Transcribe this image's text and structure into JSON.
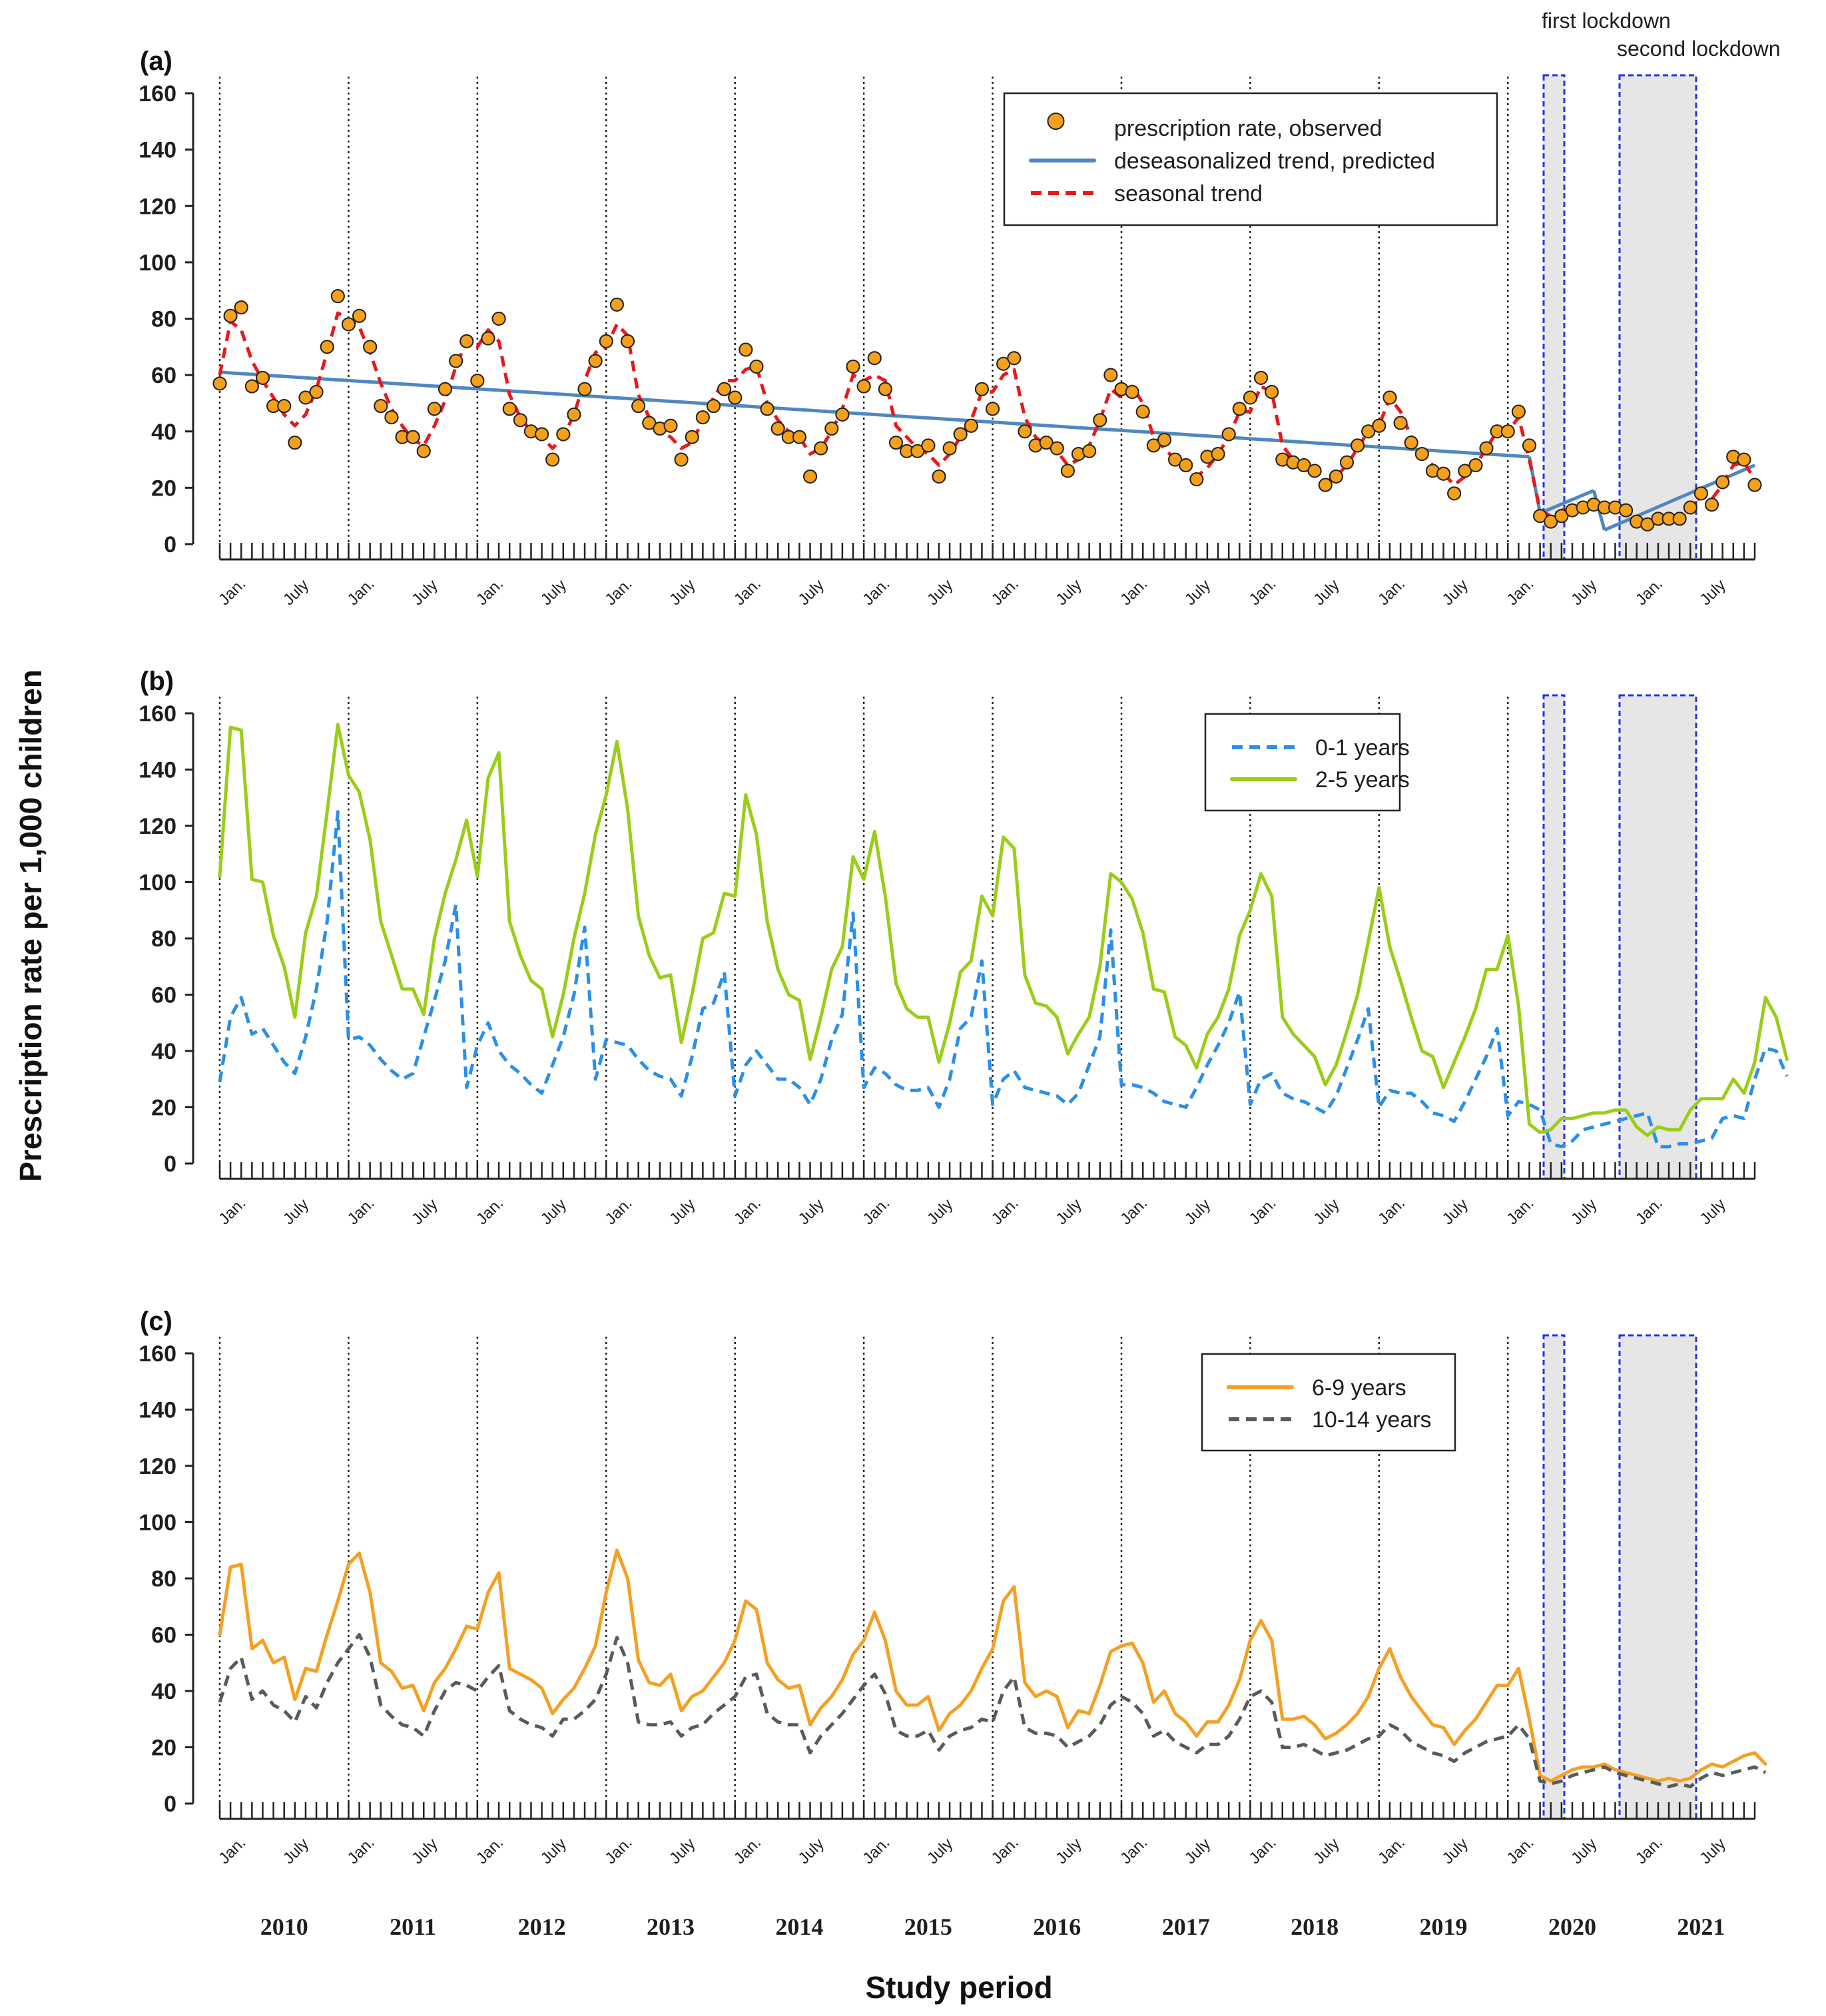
{
  "chart_data": {
    "type": "line",
    "ylabel": "Prescription rate per 1,000 children",
    "xlabel": "Study period",
    "ylim": [
      0,
      160
    ],
    "yticks": [
      "0",
      "20",
      "40",
      "60",
      "80",
      "100",
      "120",
      "140",
      "160"
    ],
    "years": [
      "2010",
      "2011",
      "2012",
      "2013",
      "2014",
      "2015",
      "2016",
      "2017",
      "2018",
      "2019",
      "2020",
      "2021"
    ],
    "month_labels": {
      "jan": "Jan.",
      "jul": "July"
    },
    "lockdowns": [
      {
        "label": "first lockdown",
        "from_month_index": 123,
        "to_month_index": 125
      },
      {
        "label": "second lockdown",
        "from_month_index": 129,
        "to_month_index": 135
      }
    ],
    "panels": [
      {
        "label": "(a)",
        "legend": [
          {
            "name": "prescription rate, observed",
            "style": "markers",
            "color": "#F5A01A"
          },
          {
            "name": "deseasonalized trend, predicted",
            "style": "solid",
            "color": "#4F87C0"
          },
          {
            "name": "seasonal trend",
            "style": "dashed",
            "color": "#E8181B"
          }
        ],
        "series": [
          {
            "name": "prescription rate, observed",
            "values": [
              57,
              81,
              84,
              56,
              59,
              49,
              49,
              36,
              52,
              54,
              70,
              88,
              78,
              81,
              70,
              49,
              45,
              38,
              38,
              33,
              48,
              55,
              65,
              72,
              58,
              73,
              80,
              48,
              44,
              40,
              39,
              30,
              39,
              46,
              55,
              65,
              72,
              85,
              72,
              49,
              43,
              41,
              42,
              30,
              38,
              45,
              49,
              55,
              52,
              69,
              63,
              48,
              41,
              38,
              38,
              24,
              34,
              41,
              46,
              63,
              56,
              66,
              55,
              36,
              33,
              33,
              35,
              24,
              34,
              39,
              42,
              55,
              48,
              64,
              66,
              40,
              35,
              36,
              34,
              26,
              32,
              33,
              44,
              60,
              55,
              54,
              47,
              35,
              37,
              30,
              28,
              23,
              31,
              32,
              39,
              48,
              52,
              59,
              54,
              30,
              29,
              28,
              26,
              21,
              24,
              29,
              35,
              40,
              42,
              52,
              43,
              36,
              32,
              26,
              25,
              18,
              26,
              28,
              34,
              40,
              40,
              47,
              35,
              10,
              8,
              10,
              12,
              13,
              14,
              13,
              13,
              12,
              8,
              7,
              9,
              9,
              9,
              13,
              18,
              14,
              22,
              31,
              30,
              21
            ]
          },
          {
            "name": "deseasonalized trend, predicted",
            "segments": [
              {
                "from": [
                  0,
                  61
                ],
                "to": [
                  122,
                  31
                ]
              },
              {
                "from": [
                  122,
                  31
                ],
                "to": [
                  123,
                  11
                ]
              },
              {
                "from": [
                  123,
                  11
                ],
                "to": [
                  128,
                  19
                ]
              },
              {
                "from": [
                  128,
                  19
                ],
                "to": [
                  129,
                  5
                ]
              },
              {
                "from": [
                  129,
                  5
                ],
                "to": [
                  143,
                  28
                ]
              }
            ]
          },
          {
            "name": "seasonal trend",
            "values": [
              60,
              79,
              76,
              65,
              58,
              52,
              46,
              42,
              46,
              55,
              68,
              82,
              80,
              77,
              68,
              57,
              48,
              42,
              37,
              35,
              42,
              51,
              63,
              72,
              70,
              76,
              72,
              53,
              45,
              40,
              38,
              34,
              38,
              46,
              58,
              68,
              70,
              78,
              74,
              53,
              45,
              40,
              38,
              34,
              36,
              44,
              52,
              58,
              58,
              62,
              63,
              50,
              44,
              40,
              38,
              32,
              34,
              40,
              48,
              60,
              58,
              60,
              58,
              42,
              38,
              34,
              32,
              28,
              32,
              38,
              44,
              54,
              54,
              60,
              62,
              45,
              38,
              35,
              33,
              28,
              30,
              35,
              44,
              55,
              52,
              56,
              50,
              38,
              34,
              30,
              28,
              24,
              27,
              32,
              38,
              47,
              47,
              56,
              54,
              35,
              30,
              28,
              26,
              22,
              24,
              28,
              34,
              40,
              42,
              52,
              47,
              38,
              32,
              28,
              25,
              21,
              24,
              28,
              34,
              40,
              40,
              45,
              30,
              12,
              10,
              12,
              13,
              13,
              14,
              13,
              13,
              12,
              9,
              8,
              9,
              9,
              9,
              13,
              17,
              16,
              21,
              28,
              29,
              23
            ]
          }
        ]
      },
      {
        "label": "(b)",
        "legend": [
          {
            "name": "0-1 years",
            "style": "dashed",
            "color": "#2A8FE8"
          },
          {
            "name": "2-5 years",
            "style": "solid",
            "color": "#9ACD19"
          }
        ],
        "series": [
          {
            "name": "0-1 years",
            "values": [
              29,
              52,
              59,
              46,
              48,
              42,
              36,
              32,
              45,
              62,
              86,
              125,
              44,
              45,
              42,
              37,
              33,
              30,
              32,
              45,
              58,
              72,
              92,
              27,
              42,
              50,
              40,
              35,
              32,
              28,
              25,
              35,
              45,
              60,
              84,
              30,
              44,
              43,
              42,
              37,
              33,
              31,
              30,
              24,
              38,
              55,
              57,
              68,
              24,
              35,
              40,
              35,
              30,
              30,
              27,
              21,
              30,
              44,
              53,
              89,
              27,
              34,
              32,
              28,
              26,
              26,
              27,
              20,
              30,
              48,
              52,
              72,
              21,
              30,
              33,
              27,
              26,
              25,
              24,
              21,
              25,
              35,
              45,
              83,
              28,
              28,
              27,
              25,
              22,
              21,
              20,
              27,
              35,
              42,
              50,
              61,
              21,
              30,
              32,
              25,
              23,
              22,
              20,
              18,
              24,
              34,
              44,
              55,
              20,
              26,
              25,
              25,
              22,
              18,
              17,
              15,
              22,
              30,
              38,
              48,
              17,
              22,
              21,
              19,
              7,
              6,
              8,
              12,
              13,
              14,
              15,
              16,
              17,
              18,
              6,
              6,
              7,
              7,
              8,
              9,
              16,
              17,
              16,
              30,
              41,
              40,
              31
            ]
          },
          {
            "name": "2-5 years",
            "values": [
              102,
              155,
              154,
              101,
              100,
              81,
              70,
              52,
              82,
              95,
              125,
              156,
              138,
              132,
              115,
              86,
              74,
              62,
              62,
              53,
              80,
              96,
              108,
              122,
              102,
              137,
              146,
              86,
              74,
              65,
              62,
              45,
              60,
              80,
              96,
              117,
              131,
              150,
              126,
              88,
              74,
              66,
              67,
              43,
              60,
              80,
              82,
              96,
              95,
              131,
              117,
              86,
              69,
              60,
              58,
              37,
              52,
              69,
              77,
              109,
              101,
              118,
              95,
              64,
              55,
              52,
              52,
              36,
              50,
              68,
              72,
              95,
              88,
              116,
              112,
              67,
              57,
              56,
              52,
              39,
              46,
              52,
              70,
              103,
              100,
              94,
              82,
              62,
              61,
              45,
              42,
              34,
              46,
              52,
              62,
              81,
              90,
              103,
              95,
              52,
              46,
              42,
              38,
              28,
              35,
              47,
              60,
              79,
              98,
              77,
              65,
              52,
              40,
              38,
              27,
              36,
              45,
              55,
              69,
              69,
              81,
              56,
              14,
              11,
              12,
              16,
              16,
              17,
              18,
              18,
              19,
              19,
              13,
              10,
              13,
              12,
              12,
              19,
              23,
              23,
              23,
              30,
              25,
              36,
              59,
              52,
              37
            ]
          }
        ]
      },
      {
        "label": "(c)",
        "legend": [
          {
            "name": "6-9 years",
            "style": "solid",
            "color": "#F4A024"
          },
          {
            "name": "10-14 years",
            "style": "dashed",
            "color": "#5A5A5A"
          }
        ],
        "series": [
          {
            "name": "6-9 years",
            "values": [
              60,
              84,
              85,
              55,
              58,
              50,
              52,
              37,
              48,
              47,
              60,
              72,
              85,
              89,
              75,
              50,
              47,
              41,
              42,
              33,
              43,
              48,
              55,
              63,
              62,
              75,
              82,
              48,
              46,
              44,
              41,
              32,
              37,
              41,
              48,
              56,
              75,
              90,
              80,
              51,
              43,
              42,
              46,
              33,
              38,
              40,
              45,
              50,
              58,
              72,
              69,
              50,
              44,
              41,
              42,
              28,
              34,
              38,
              44,
              53,
              58,
              68,
              58,
              40,
              35,
              35,
              38,
              26,
              32,
              35,
              40,
              48,
              55,
              72,
              77,
              43,
              38,
              40,
              38,
              27,
              33,
              32,
              42,
              54,
              56,
              57,
              50,
              36,
              40,
              32,
              29,
              24,
              29,
              29,
              35,
              44,
              58,
              65,
              58,
              30,
              30,
              31,
              28,
              23,
              25,
              28,
              32,
              38,
              48,
              55,
              45,
              38,
              33,
              28,
              27,
              21,
              26,
              30,
              36,
              42,
              42,
              48,
              30,
              10,
              8,
              10,
              12,
              13,
              13,
              14,
              12,
              11,
              10,
              9,
              8,
              9,
              8,
              9,
              12,
              14,
              13,
              15,
              17,
              18,
              14
            ]
          },
          {
            "name": "10-14 years",
            "values": [
              36,
              48,
              52,
              37,
              40,
              35,
              33,
              29,
              38,
              34,
              43,
              50,
              55,
              60,
              52,
              35,
              31,
              28,
              27,
              24,
              33,
              40,
              43,
              42,
              40,
              45,
              49,
              33,
              30,
              28,
              27,
              24,
              30,
              30,
              33,
              37,
              46,
              59,
              50,
              29,
              28,
              28,
              29,
              24,
              27,
              28,
              32,
              35,
              38,
              45,
              46,
              32,
              29,
              28,
              28,
              18,
              24,
              28,
              32,
              37,
              42,
              46,
              39,
              26,
              24,
              24,
              26,
              19,
              24,
              26,
              27,
              30,
              29,
              40,
              45,
              27,
              25,
              25,
              24,
              20,
              22,
              24,
              28,
              35,
              38,
              36,
              32,
              24,
              26,
              22,
              20,
              18,
              21,
              21,
              24,
              30,
              38,
              40,
              36,
              20,
              20,
              21,
              19,
              17,
              18,
              19,
              21,
              23,
              24,
              28,
              26,
              22,
              20,
              18,
              17,
              15,
              18,
              20,
              22,
              23,
              24,
              28,
              23,
              8,
              7,
              8,
              10,
              11,
              12,
              13,
              11,
              10,
              9,
              8,
              7,
              6,
              7,
              6,
              9,
              11,
              10,
              11,
              12,
              13,
              11
            ]
          }
        ]
      }
    ]
  }
}
